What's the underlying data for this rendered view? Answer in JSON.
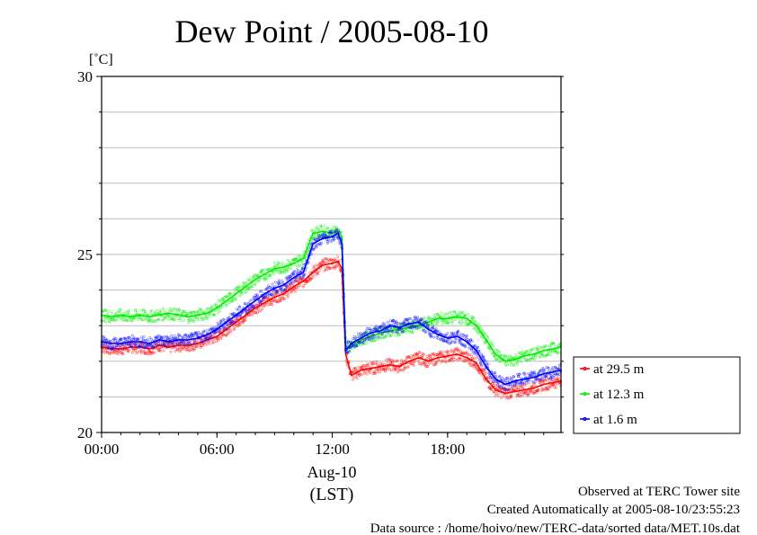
{
  "chart_data": {
    "type": "line",
    "title": "Dew Point / 2005-08-10",
    "ylabel": "[˚C]",
    "xlabel": "(LST)",
    "date_label": "Aug-10",
    "xlim": [
      0,
      23.9
    ],
    "ylim": [
      20,
      30
    ],
    "x_ticks": [
      {
        "value": 0,
        "label": "00:00"
      },
      {
        "value": 6,
        "label": "06:00"
      },
      {
        "value": 12,
        "label": "12:00"
      },
      {
        "value": 18,
        "label": "18:00"
      }
    ],
    "y_ticks": [
      20,
      25,
      30
    ],
    "grid": true,
    "legend_placement": "right",
    "x": [
      0,
      0.5,
      1,
      1.5,
      2,
      2.5,
      3,
      3.5,
      4,
      4.5,
      5,
      5.5,
      6,
      6.5,
      7,
      7.5,
      8,
      8.5,
      9,
      9.5,
      10,
      10.5,
      11,
      11.5,
      12,
      12.3,
      12.5,
      12.7,
      13,
      13.5,
      14,
      14.5,
      15,
      15.5,
      16,
      16.5,
      17,
      17.5,
      18,
      18.5,
      19,
      19.5,
      20,
      20.5,
      21,
      21.5,
      22,
      22.5,
      23,
      23.5,
      23.9
    ],
    "series": [
      {
        "name": "at 29.5 m",
        "color": "#ff0000",
        "values": [
          22.4,
          22.35,
          22.35,
          22.4,
          22.4,
          22.35,
          22.45,
          22.4,
          22.45,
          22.45,
          22.5,
          22.6,
          22.7,
          22.9,
          23.1,
          23.3,
          23.5,
          23.65,
          23.8,
          23.9,
          24.1,
          24.25,
          24.5,
          24.7,
          24.75,
          24.8,
          24.6,
          22.2,
          21.6,
          21.75,
          21.8,
          21.85,
          21.9,
          21.85,
          22.0,
          22.1,
          22.0,
          22.1,
          22.15,
          22.2,
          22.1,
          21.95,
          21.5,
          21.2,
          21.1,
          21.15,
          21.2,
          21.25,
          21.35,
          21.4,
          21.45
        ]
      },
      {
        "name": "at 12.3 m",
        "color": "#00ee00",
        "values": [
          23.3,
          23.25,
          23.3,
          23.25,
          23.3,
          23.25,
          23.3,
          23.35,
          23.3,
          23.25,
          23.3,
          23.35,
          23.5,
          23.7,
          23.9,
          24.1,
          24.3,
          24.45,
          24.6,
          24.65,
          24.75,
          24.9,
          25.6,
          25.65,
          25.6,
          25.65,
          25.5,
          22.4,
          22.4,
          22.6,
          22.7,
          22.8,
          22.85,
          22.9,
          22.95,
          23.0,
          23.1,
          23.2,
          23.2,
          23.25,
          23.2,
          23.0,
          22.6,
          22.2,
          22.0,
          22.05,
          22.15,
          22.2,
          22.3,
          22.35,
          22.4
        ]
      },
      {
        "name": "at 1.6 m",
        "color": "#0000ff",
        "values": [
          22.55,
          22.5,
          22.5,
          22.55,
          22.55,
          22.5,
          22.6,
          22.55,
          22.6,
          22.6,
          22.65,
          22.75,
          22.9,
          23.1,
          23.3,
          23.5,
          23.7,
          23.9,
          24.05,
          24.15,
          24.35,
          24.5,
          25.3,
          25.45,
          25.5,
          25.6,
          25.3,
          22.3,
          22.5,
          22.65,
          22.8,
          22.85,
          23.0,
          22.95,
          23.05,
          23.1,
          22.9,
          22.75,
          22.65,
          22.7,
          22.55,
          22.3,
          21.85,
          21.5,
          21.35,
          21.45,
          21.5,
          21.55,
          21.65,
          21.7,
          21.75
        ]
      }
    ]
  },
  "footer": {
    "line1": "Observed at TERC Tower site",
    "line2": "Created Automatically at 2005-08-10/23:55:23",
    "line3": "Data source : /home/hoivo/new/TERC-data/sorted  data/MET.10s.dat"
  }
}
